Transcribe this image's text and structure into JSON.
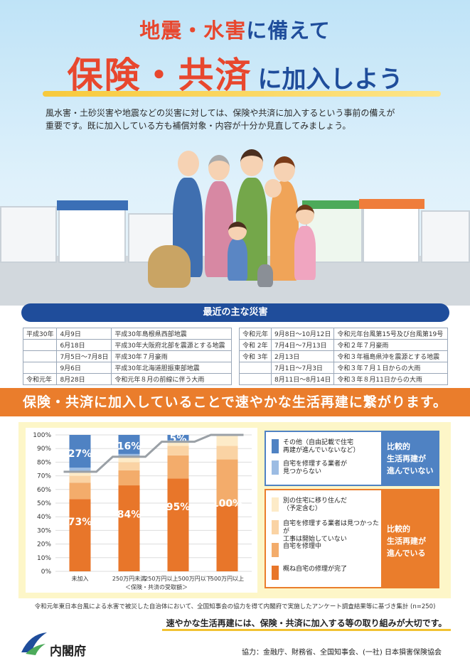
{
  "header": {
    "line1_red": "地震・水害",
    "line1_rest": "に備えて",
    "line2_red": "保険・共済",
    "line2_rest": "に加入しよう",
    "intro_1": "風水害・土砂災害や地震などの災害に対しては、保険や共済に加入するという事前の備えが",
    "intro_2": "重要です。既に加入している方も補償対象・内容が十分か見直してみましょう。"
  },
  "disasters": {
    "title": "最近の主な災害",
    "left": [
      [
        "平成30年",
        "4月9日",
        "平成30年島根県西部地震"
      ],
      [
        "",
        "6月18日",
        "平成30年大阪府北部を震源とする地震"
      ],
      [
        "",
        "7月5日～7月8日",
        "平成30年７月豪雨"
      ],
      [
        "",
        "9月6日",
        "平成30年北海道胆振東部地震"
      ],
      [
        "令和元年",
        "8月28日",
        "令和元年８月の前線に伴う大雨"
      ]
    ],
    "right": [
      [
        "令和元年",
        "9月8日～10月12日",
        "令和元年台風第15号及び台風第19号"
      ],
      [
        "令和 2年",
        "7月4日～7月13日",
        "令和２年７月豪雨"
      ],
      [
        "令和 3年",
        "2月13日",
        "令和３年福島県沖を震源とする地震"
      ],
      [
        "",
        "7月1日～7月3日",
        "令和３年７月１日からの大雨"
      ],
      [
        "",
        "8月11日～8月14日",
        "令和３年８月11日からの大雨"
      ]
    ]
  },
  "banner": "保険・共済に加入していることで速やかな生活再建に繋がります。",
  "chart_data": {
    "type": "bar",
    "stacked": true,
    "categories": [
      "未加入",
      "250万円未満",
      "250万円以上500万円以下",
      "500万円以上"
    ],
    "xlabel": "＜保険・共済の受取額＞",
    "ylim": [
      0,
      100
    ],
    "yticks": [
      "0%",
      "10%",
      "20%",
      "30%",
      "40%",
      "50%",
      "60%",
      "70%",
      "80%",
      "90%",
      "100%"
    ],
    "series": [
      {
        "name": "概ね自宅の修理が完了",
        "color": "#e8762a",
        "values": [
          53,
          63,
          68,
          48
        ]
      },
      {
        "name": "自宅を修理中",
        "color": "#f3ac6b",
        "values": [
          12,
          11,
          17,
          34
        ]
      },
      {
        "name": "自宅を修理する業者は見つかったが工事は開始していない",
        "color": "#fad3a4",
        "values": [
          5,
          6,
          7,
          10
        ]
      },
      {
        "name": "別の住宅に移り住んだ（予定含む）",
        "color": "#fdebc8",
        "values": [
          3,
          4,
          3,
          8
        ]
      },
      {
        "name": "自宅を修理する業者が見つからない",
        "color": "#9cbce3",
        "values": [
          3,
          2,
          1,
          0
        ]
      },
      {
        "name": "その他（自由記載で住宅再建が進んでいないなど）",
        "color": "#4f82c3",
        "values": [
          24,
          14,
          4,
          0
        ]
      }
    ],
    "totals_label": [
      "73%",
      "84%",
      "95%",
      "100%"
    ],
    "top_label": [
      "27%",
      "16%",
      "5%",
      ""
    ],
    "line_values": [
      73,
      84,
      95,
      100
    ]
  },
  "legend": {
    "group_not": "比較的\n生活再建が\n進んでいない",
    "group_yes": "比較的\n生活再建が\n進んでいる",
    "not_items": [
      {
        "label": "その他（自由記載で住宅\n再建が進んでいないなど）",
        "color": "#4f82c3"
      },
      {
        "label": "自宅を修理する業者が\n見つからない",
        "color": "#9cbce3"
      }
    ],
    "yes_items": [
      {
        "label": "別の住宅に移り住んだ\n（予定含む）",
        "color": "#fdebc8"
      },
      {
        "label": "自宅を修理する業者は見つかったが\n工事は開始していない",
        "color": "#fad3a4"
      },
      {
        "label": "自宅を修理中",
        "color": "#f3ac6b"
      },
      {
        "label": "概ね自宅の修理が完了",
        "color": "#e8762a"
      }
    ]
  },
  "footnote": "令和元年東日本台風による水害で被災した自治体において、全国知事会の協力を得て内閣府で実施したアンケート調査結果等に基づき集計 (n=250)",
  "bottom_message": "速やかな生活再建には、保険・共済に加入する等の取り組みが大切です。",
  "org": "内閣府",
  "cooperation": "協力：金融庁、財務省、全国知事会、(一社) 日本損害保険協会"
}
